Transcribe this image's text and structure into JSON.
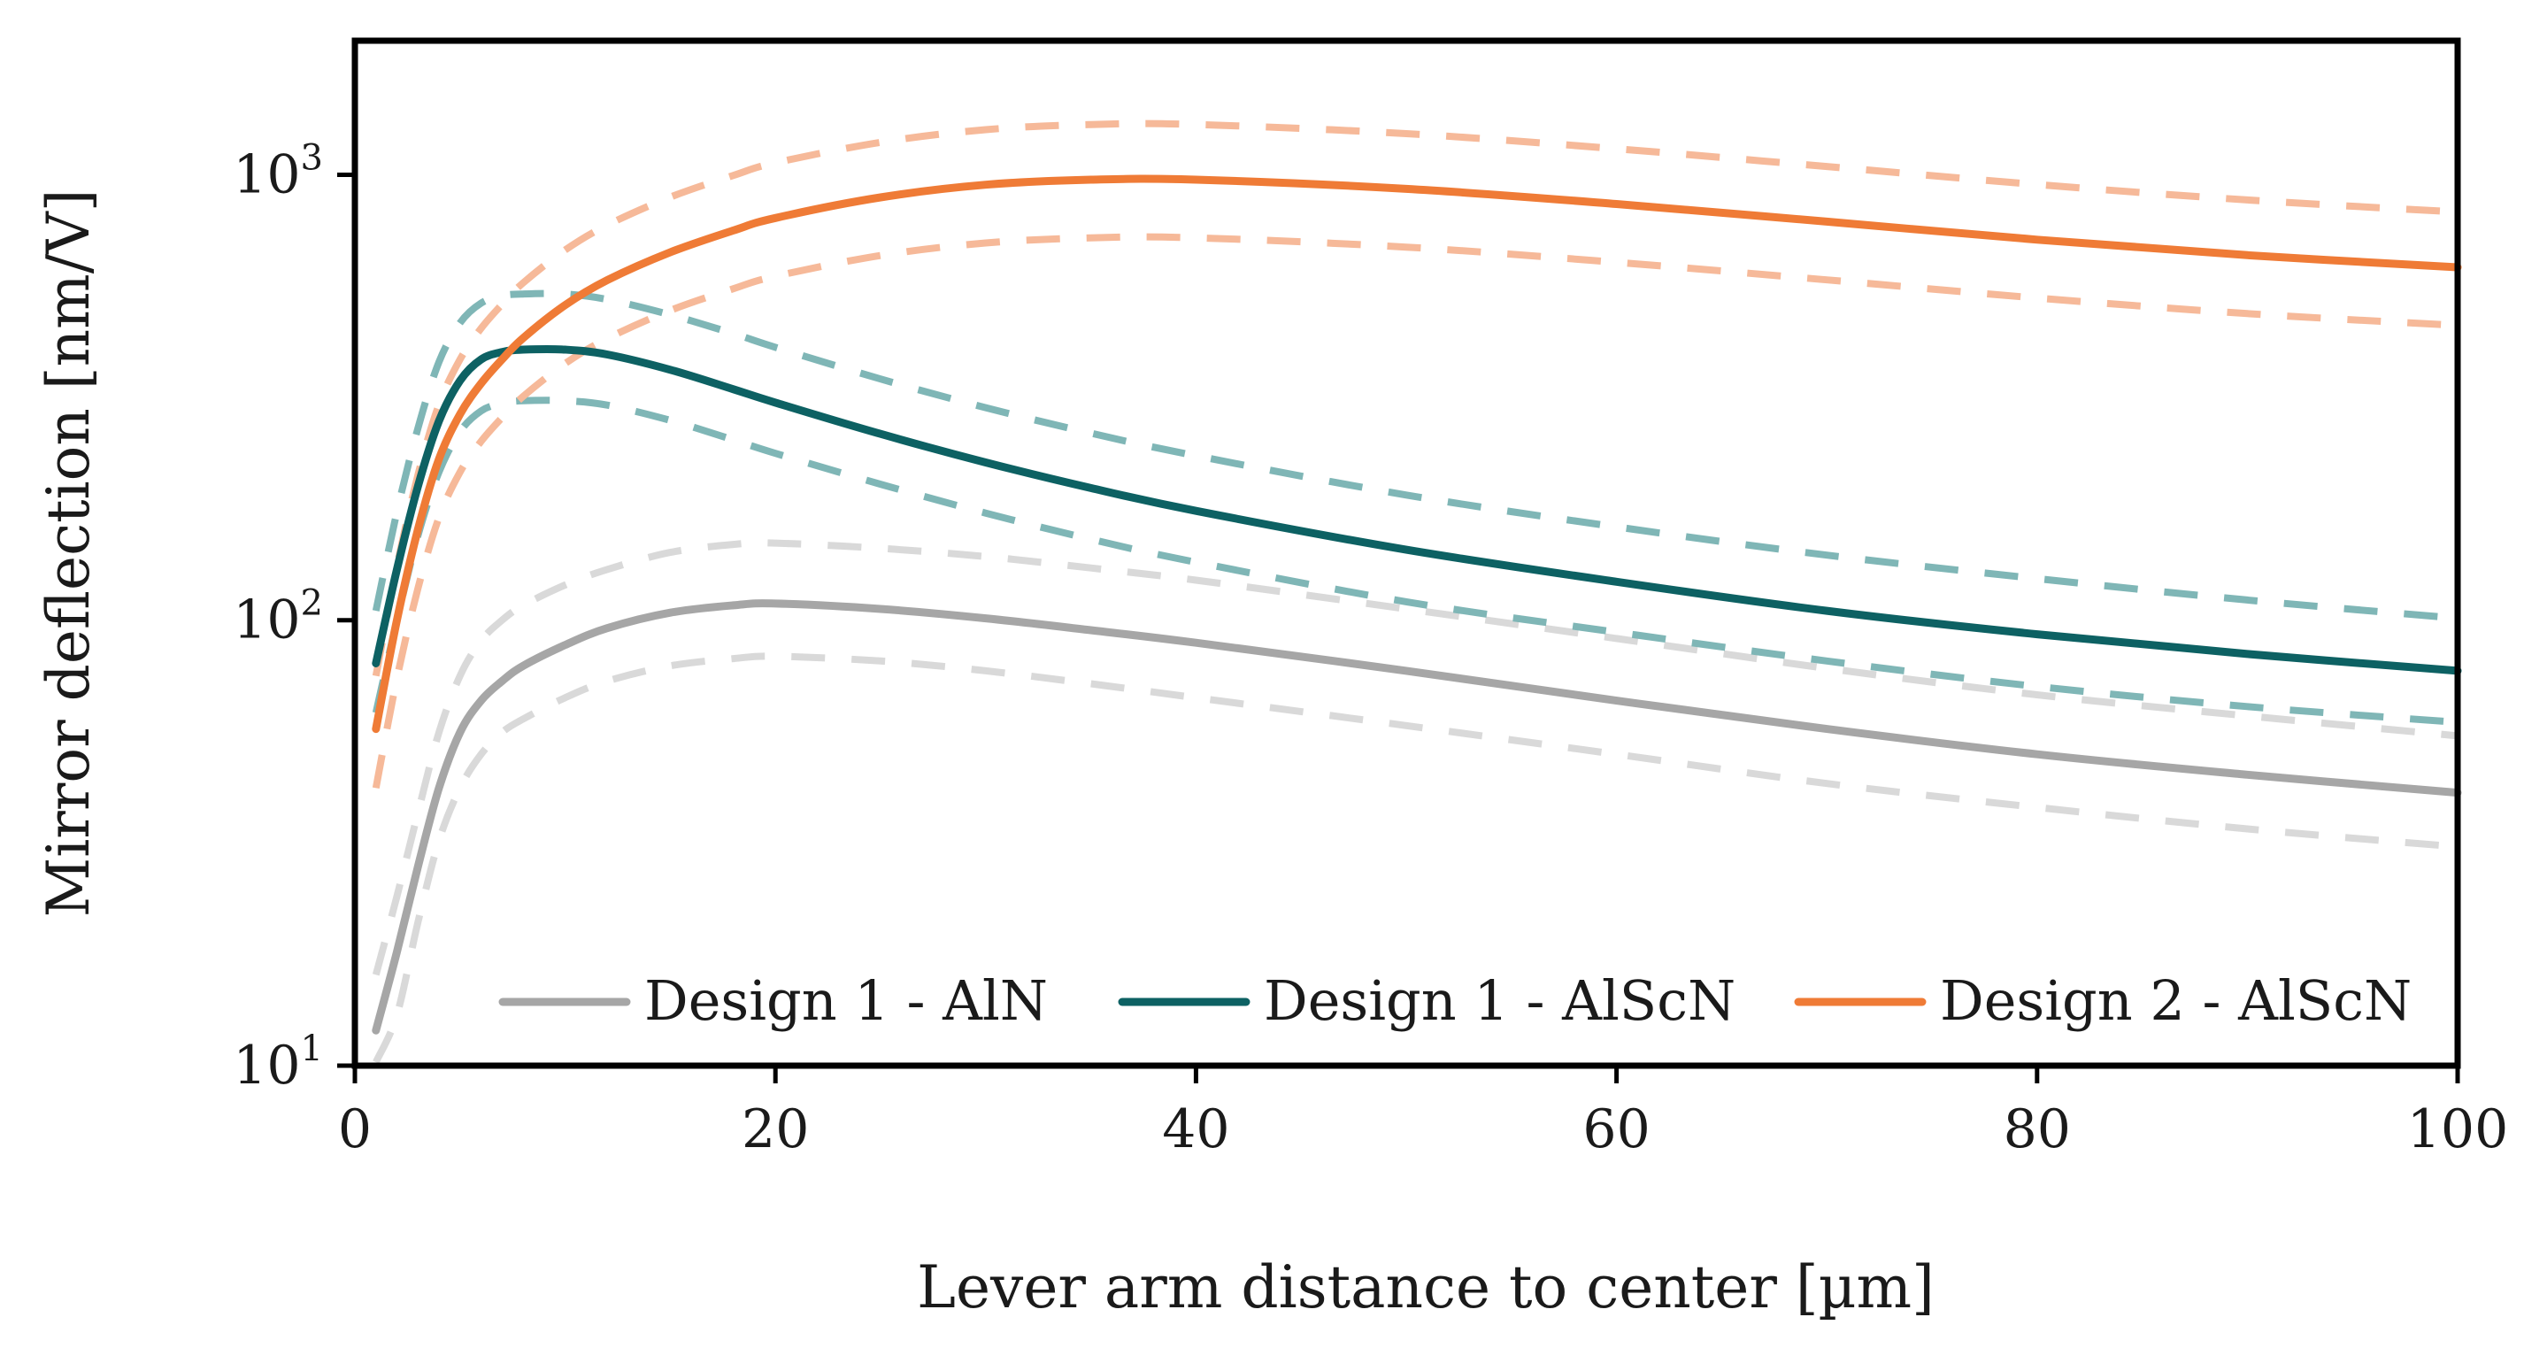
{
  "chart_data": {
    "type": "line",
    "title": "",
    "xlabel": "Lever arm distance to center [µm]",
    "ylabel": "Mirror deflection [nm/V]",
    "xlim": [
      0,
      100
    ],
    "ylim": [
      10,
      2000
    ],
    "yscale": "log",
    "grid": false,
    "legend_position": "bottom",
    "x_ticks": [
      0,
      20,
      40,
      60,
      80,
      100
    ],
    "x_tick_labels": [
      "0",
      "20",
      "40",
      "60",
      "80",
      "100"
    ],
    "y_ticks": [
      {
        "value": 10,
        "base": "10",
        "exp": "1"
      },
      {
        "value": 100,
        "base": "10",
        "exp": "2"
      },
      {
        "value": 1000,
        "base": "10",
        "exp": "3"
      }
    ],
    "series": [
      {
        "name": "Design 1 - AlN",
        "color": "#a6a6a6",
        "band_color": "#d9d9d9",
        "x": [
          1,
          2,
          3,
          4,
          5,
          6,
          7,
          8,
          10,
          12,
          15,
          18,
          20,
          25,
          30,
          35,
          40,
          50,
          60,
          70,
          80,
          90,
          100
        ],
        "values": [
          12,
          18,
          28,
          42,
          56,
          66,
          73,
          79,
          88,
          96,
          104,
          108,
          109,
          106,
          101,
          95,
          89,
          77,
          66,
          57,
          50,
          45,
          41
        ],
        "upper": [
          16,
          24,
          37,
          56,
          75,
          90,
          100,
          108,
          120,
          130,
          142,
          148,
          149,
          145,
          139,
          131,
          123,
          106,
          91,
          78,
          68,
          61,
          55
        ],
        "lower": [
          9,
          13,
          21,
          32,
          42,
          50,
          56,
          60,
          67,
          73,
          79,
          82,
          83,
          81,
          77,
          72,
          67,
          58,
          50,
          43,
          38,
          34,
          31
        ]
      },
      {
        "name": "Design 1 - AlScN",
        "color": "#0d6163",
        "band_color": "#7fb6b6",
        "x": [
          1,
          2,
          3,
          4,
          5,
          6,
          7,
          8,
          10,
          12,
          15,
          18,
          20,
          25,
          30,
          35,
          40,
          50,
          60,
          70,
          80,
          90,
          100
        ],
        "values": [
          80,
          130,
          200,
          280,
          345,
          385,
          400,
          405,
          405,
          395,
          365,
          330,
          308,
          262,
          226,
          198,
          176,
          144,
          122,
          105,
          93,
          84,
          77
        ],
        "upper": [
          105,
          175,
          270,
          380,
          465,
          515,
          535,
          540,
          540,
          525,
          485,
          440,
          410,
          348,
          300,
          263,
          234,
          191,
          162,
          140,
          124,
          111,
          101
        ],
        "lower": [
          62,
          100,
          155,
          215,
          265,
          295,
          307,
          311,
          311,
          304,
          281,
          254,
          237,
          202,
          174,
          152,
          135,
          110,
          94,
          81,
          71,
          64,
          59
        ]
      },
      {
        "name": "Design 2 - AlScN",
        "color": "#ef7b36",
        "band_color": "#f6b999",
        "x": [
          1,
          2,
          3,
          4,
          5,
          6,
          7,
          8,
          10,
          12,
          15,
          18,
          20,
          25,
          30,
          35,
          40,
          50,
          60,
          70,
          80,
          90,
          100
        ],
        "values": [
          57,
          100,
          160,
          230,
          290,
          340,
          385,
          430,
          510,
          580,
          670,
          750,
          800,
          890,
          950,
          975,
          975,
          930,
          860,
          785,
          715,
          660,
          620
        ],
        "upper": [
          75,
          132,
          212,
          305,
          385,
          452,
          512,
          572,
          678,
          771,
          891,
          997,
          1064,
          1183,
          1263,
          1297,
          1297,
          1237,
          1144,
          1044,
          951,
          878,
          825
        ],
        "lower": [
          42,
          74,
          118,
          170,
          215,
          252,
          285,
          318,
          377,
          429,
          496,
          555,
          592,
          659,
          703,
          722,
          722,
          688,
          636,
          581,
          529,
          488,
          459
        ]
      }
    ]
  }
}
